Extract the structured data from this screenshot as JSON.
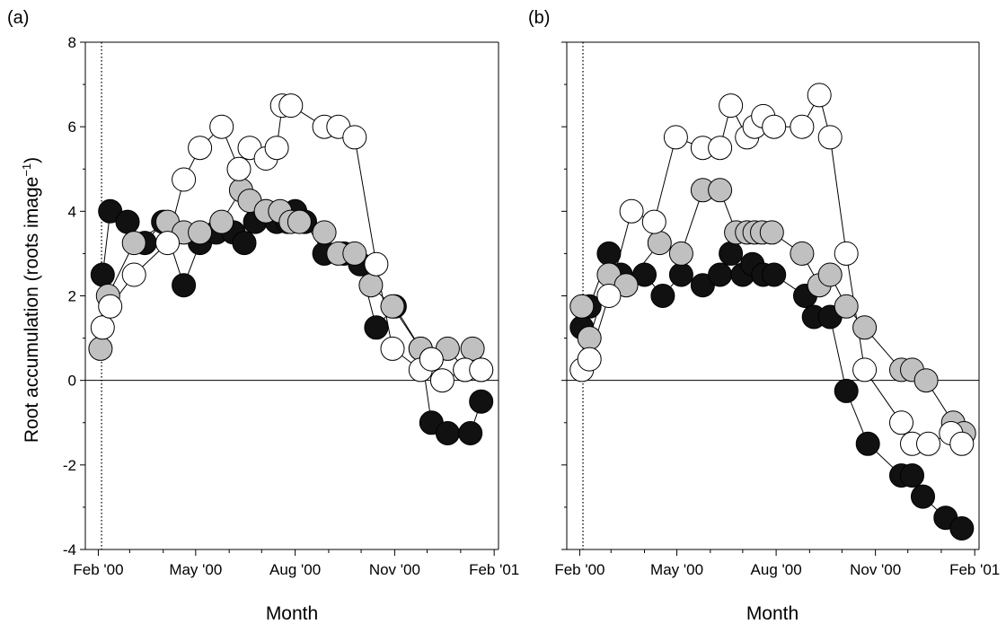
{
  "chart_data": [
    {
      "type": "scatter",
      "panel_label": "(a)",
      "xlabel": "Month",
      "ylabel": "Root accumulation (roots image",
      "ylabel_sup": "−1",
      "ylabel_close": ")",
      "xlim": [
        "2000-01-20",
        "2001-02-05"
      ],
      "ylim": [
        -4,
        8
      ],
      "xticks": [
        {
          "date": "2000-02-01",
          "label": "Feb '00"
        },
        {
          "date": "2000-05-01",
          "label": "May '00"
        },
        {
          "date": "2000-08-01",
          "label": "Aug '00"
        },
        {
          "date": "2000-11-01",
          "label": "Nov '00"
        },
        {
          "date": "2001-02-01",
          "label": "Feb '01"
        }
      ],
      "yticks": [
        -4,
        -2,
        0,
        2,
        4,
        6,
        8
      ],
      "yticks_labeled": true,
      "reference_line_y": 0,
      "dotted_line_x": "2000-02-04",
      "grid": false,
      "series": [
        {
          "fill": "black",
          "points": [
            [
              "2000-02-05",
              2.5
            ],
            [
              "2000-02-12",
              4.0
            ],
            [
              "2000-02-28",
              3.75
            ],
            [
              "2000-03-15",
              3.25
            ],
            [
              "2000-04-01",
              3.75
            ],
            [
              "2000-04-20",
              2.25
            ],
            [
              "2000-05-05",
              3.25
            ],
            [
              "2000-05-20",
              3.5
            ],
            [
              "2000-06-05",
              3.5
            ],
            [
              "2000-06-15",
              3.25
            ],
            [
              "2000-06-25",
              3.75
            ],
            [
              "2000-07-05",
              4.0
            ],
            [
              "2000-07-15",
              3.75
            ],
            [
              "2000-07-25",
              3.75
            ],
            [
              "2000-08-01",
              4.0
            ],
            [
              "2000-08-10",
              3.75
            ],
            [
              "2000-08-28",
              3.0
            ],
            [
              "2000-09-15",
              3.0
            ],
            [
              "2000-09-30",
              2.75
            ],
            [
              "2000-10-15",
              1.25
            ],
            [
              "2000-11-01",
              1.75
            ],
            [
              "2000-11-25",
              0.75
            ],
            [
              "2000-12-05",
              -1.0
            ],
            [
              "2000-12-20",
              -1.25
            ],
            [
              "2001-01-10",
              -1.25
            ],
            [
              "2001-01-20",
              -0.5
            ]
          ]
        },
        {
          "fill": "gray",
          "points": [
            [
              "2000-02-03",
              0.75
            ],
            [
              "2000-02-10",
              2.0
            ],
            [
              "2000-03-05",
              3.25
            ],
            [
              "2000-04-05",
              3.75
            ],
            [
              "2000-04-20",
              3.5
            ],
            [
              "2000-05-05",
              3.5
            ],
            [
              "2000-05-25",
              3.75
            ],
            [
              "2000-06-12",
              4.5
            ],
            [
              "2000-06-20",
              4.25
            ],
            [
              "2000-07-05",
              4.0
            ],
            [
              "2000-07-18",
              4.0
            ],
            [
              "2000-07-28",
              3.75
            ],
            [
              "2000-08-05",
              3.75
            ],
            [
              "2000-08-28",
              3.5
            ],
            [
              "2000-09-10",
              3.0
            ],
            [
              "2000-09-25",
              3.0
            ],
            [
              "2000-10-10",
              2.25
            ],
            [
              "2000-10-30",
              1.75
            ],
            [
              "2000-11-25",
              0.75
            ],
            [
              "2000-12-05",
              0.5
            ],
            [
              "2000-12-20",
              0.75
            ],
            [
              "2001-01-05",
              0.25
            ],
            [
              "2001-01-12",
              0.75
            ],
            [
              "2001-01-20",
              0.25
            ]
          ]
        },
        {
          "fill": "white",
          "points": [
            [
              "2000-02-05",
              1.25
            ],
            [
              "2000-02-12",
              1.75
            ],
            [
              "2000-03-05",
              2.5
            ],
            [
              "2000-04-05",
              3.25
            ],
            [
              "2000-04-20",
              4.75
            ],
            [
              "2000-05-05",
              5.5
            ],
            [
              "2000-05-25",
              6.0
            ],
            [
              "2000-06-10",
              5.0
            ],
            [
              "2000-06-20",
              5.5
            ],
            [
              "2000-07-05",
              5.25
            ],
            [
              "2000-07-15",
              5.5
            ],
            [
              "2000-07-20",
              6.5
            ],
            [
              "2000-07-28",
              6.5
            ],
            [
              "2000-08-28",
              6.0
            ],
            [
              "2000-09-10",
              6.0
            ],
            [
              "2000-09-25",
              5.75
            ],
            [
              "2000-10-15",
              2.75
            ],
            [
              "2000-10-30",
              0.75
            ],
            [
              "2000-11-25",
              0.25
            ],
            [
              "2000-12-05",
              0.5
            ],
            [
              "2000-12-15",
              0.0
            ],
            [
              "2001-01-05",
              0.25
            ],
            [
              "2001-01-20",
              0.25
            ]
          ]
        }
      ]
    },
    {
      "type": "scatter",
      "panel_label": "(b)",
      "xlabel": "Month",
      "xlim": [
        "2000-01-20",
        "2001-02-05"
      ],
      "ylim": [
        -4,
        8
      ],
      "xticks": [
        {
          "date": "2000-02-01",
          "label": "Feb '00"
        },
        {
          "date": "2000-05-01",
          "label": "May '00"
        },
        {
          "date": "2000-08-01",
          "label": "Aug '00"
        },
        {
          "date": "2000-11-01",
          "label": "Nov '00"
        },
        {
          "date": "2001-02-01",
          "label": "Feb '01"
        }
      ],
      "yticks": [
        -4,
        -2,
        0,
        2,
        4,
        6,
        8
      ],
      "yticks_labeled": false,
      "reference_line_y": 0,
      "dotted_line_x": "2000-02-04",
      "grid": false,
      "series": [
        {
          "fill": "black",
          "points": [
            [
              "2000-02-03",
              1.25
            ],
            [
              "2000-02-10",
              1.75
            ],
            [
              "2000-02-28",
              3.0
            ],
            [
              "2000-03-10",
              2.5
            ],
            [
              "2000-04-01",
              2.5
            ],
            [
              "2000-04-18",
              2.0
            ],
            [
              "2000-05-05",
              2.5
            ],
            [
              "2000-05-25",
              2.25
            ],
            [
              "2000-06-10",
              2.5
            ],
            [
              "2000-06-20",
              3.0
            ],
            [
              "2000-07-01",
              2.5
            ],
            [
              "2000-07-10",
              2.75
            ],
            [
              "2000-07-20",
              2.5
            ],
            [
              "2000-07-30",
              2.5
            ],
            [
              "2000-08-28",
              2.0
            ],
            [
              "2000-09-05",
              1.5
            ],
            [
              "2000-09-20",
              1.5
            ],
            [
              "2000-10-05",
              -0.25
            ],
            [
              "2000-10-25",
              -1.5
            ],
            [
              "2000-11-25",
              -2.25
            ],
            [
              "2000-12-05",
              -2.25
            ],
            [
              "2000-12-15",
              -2.75
            ],
            [
              "2001-01-05",
              -3.25
            ],
            [
              "2001-01-20",
              -3.5
            ]
          ]
        },
        {
          "fill": "gray",
          "points": [
            [
              "2000-02-03",
              1.75
            ],
            [
              "2000-02-10",
              1.0
            ],
            [
              "2000-02-28",
              2.5
            ],
            [
              "2000-03-15",
              2.25
            ],
            [
              "2000-04-15",
              3.25
            ],
            [
              "2000-05-05",
              3.0
            ],
            [
              "2000-05-25",
              4.5
            ],
            [
              "2000-06-10",
              4.5
            ],
            [
              "2000-06-25",
              3.5
            ],
            [
              "2000-07-05",
              3.5
            ],
            [
              "2000-07-12",
              3.5
            ],
            [
              "2000-07-19",
              3.5
            ],
            [
              "2000-07-28",
              3.5
            ],
            [
              "2000-08-25",
              3.0
            ],
            [
              "2000-09-10",
              2.25
            ],
            [
              "2000-09-20",
              2.5
            ],
            [
              "2000-10-05",
              1.75
            ],
            [
              "2000-10-22",
              1.25
            ],
            [
              "2000-11-25",
              0.25
            ],
            [
              "2000-12-05",
              0.25
            ],
            [
              "2000-12-18",
              0.0
            ],
            [
              "2001-01-12",
              -1.0
            ],
            [
              "2001-01-22",
              -1.25
            ]
          ]
        },
        {
          "fill": "white",
          "points": [
            [
              "2000-02-03",
              0.25
            ],
            [
              "2000-02-10",
              0.5
            ],
            [
              "2000-02-28",
              2.0
            ],
            [
              "2000-03-20",
              4.0
            ],
            [
              "2000-04-10",
              3.75
            ],
            [
              "2000-04-30",
              5.75
            ],
            [
              "2000-05-25",
              5.5
            ],
            [
              "2000-06-10",
              5.5
            ],
            [
              "2000-06-20",
              6.5
            ],
            [
              "2000-07-05",
              5.75
            ],
            [
              "2000-07-12",
              6.0
            ],
            [
              "2000-07-20",
              6.25
            ],
            [
              "2000-07-30",
              6.0
            ],
            [
              "2000-08-25",
              6.0
            ],
            [
              "2000-09-10",
              6.75
            ],
            [
              "2000-09-20",
              5.75
            ],
            [
              "2000-10-05",
              3.0
            ],
            [
              "2000-10-22",
              0.25
            ],
            [
              "2000-11-25",
              -1.0
            ],
            [
              "2000-12-05",
              -1.5
            ],
            [
              "2000-12-20",
              -1.5
            ],
            [
              "2001-01-10",
              -1.25
            ],
            [
              "2001-01-20",
              -1.5
            ]
          ]
        }
      ]
    }
  ]
}
